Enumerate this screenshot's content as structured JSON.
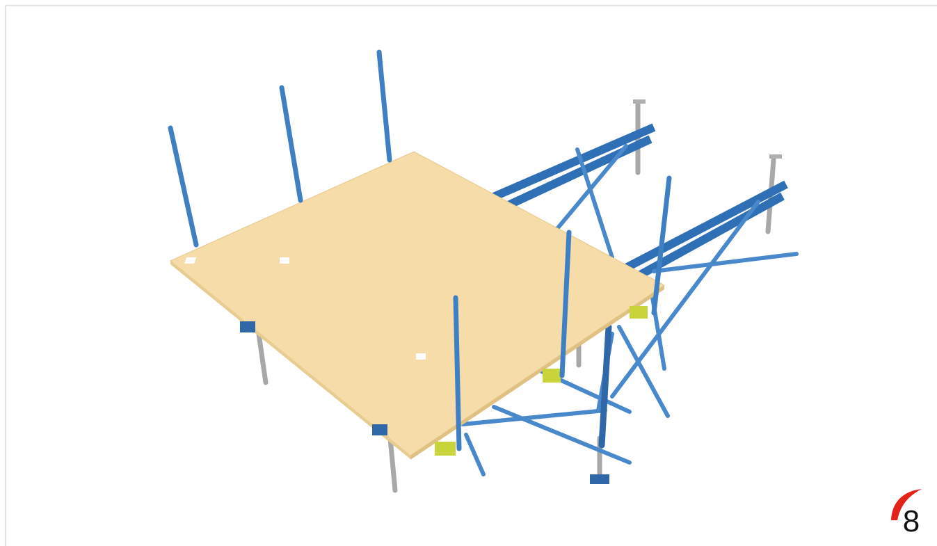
{
  "page_number": 8
}
